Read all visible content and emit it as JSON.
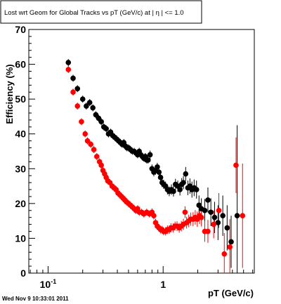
{
  "chart_data": {
    "type": "scatter",
    "title": "Lost wrt Geom for Global Tracks vs pT (GeV/c) at |  η | <= 1.0",
    "xlabel": "pT (GeV/c)",
    "ylabel": "Efficiency (%)",
    "x_scale": "log",
    "xlim": [
      0.068,
      6.2
    ],
    "ylim": [
      0,
      70
    ],
    "x_major_ticks": [
      {
        "value": 0.1,
        "base": "10",
        "exp": "-1"
      },
      {
        "value": 1,
        "label": "1"
      }
    ],
    "y_ticks": [
      0,
      10,
      20,
      30,
      40,
      50,
      60,
      70
    ],
    "footer": "Wed Nov  9 10:33:01 2011",
    "series": [
      {
        "color": "#000000",
        "points": [
          [
            0.15,
            60.5
          ],
          [
            0.165,
            56
          ],
          [
            0.18,
            53
          ],
          [
            0.2,
            50
          ],
          [
            0.215,
            48
          ],
          [
            0.23,
            49
          ],
          [
            0.245,
            47.5
          ],
          [
            0.26,
            45.5
          ],
          [
            0.275,
            44.5
          ],
          [
            0.29,
            43.5
          ],
          [
            0.305,
            42
          ],
          [
            0.32,
            41.5
          ],
          [
            0.335,
            40
          ],
          [
            0.35,
            40.5
          ],
          [
            0.365,
            39.5
          ],
          [
            0.38,
            39
          ],
          [
            0.395,
            38.5
          ],
          [
            0.41,
            38
          ],
          [
            0.425,
            37.5
          ],
          [
            0.44,
            37
          ],
          [
            0.455,
            37.5
          ],
          [
            0.47,
            36.5
          ],
          [
            0.485,
            36
          ],
          [
            0.5,
            36
          ],
          [
            0.52,
            35.5
          ],
          [
            0.54,
            35
          ],
          [
            0.56,
            35
          ],
          [
            0.58,
            34.5
          ],
          [
            0.6,
            34
          ],
          [
            0.62,
            35
          ],
          [
            0.64,
            34
          ],
          [
            0.66,
            33.5
          ],
          [
            0.68,
            33
          ],
          [
            0.7,
            33.5
          ],
          [
            0.72,
            32.5
          ],
          [
            0.74,
            32.5
          ],
          [
            0.77,
            34
          ],
          [
            0.8,
            30
          ],
          [
            0.83,
            29
          ],
          [
            0.86,
            29.5
          ],
          [
            0.89,
            30.5
          ],
          [
            0.92,
            29
          ],
          [
            0.95,
            27.5
          ],
          [
            0.98,
            26
          ],
          [
            1.01,
            25.5
          ],
          [
            1.05,
            25
          ],
          [
            1.09,
            24
          ],
          [
            1.13,
            23.5
          ],
          [
            1.18,
            24
          ],
          [
            1.23,
            23.5
          ],
          [
            1.28,
            25.5
          ],
          [
            1.34,
            25
          ],
          [
            1.4,
            24
          ],
          [
            1.45,
            25.5
          ],
          [
            1.5,
            26
          ],
          [
            1.57,
            28.5
          ],
          [
            1.64,
            24.5
          ],
          [
            1.71,
            25
          ],
          [
            1.78,
            24
          ],
          [
            1.86,
            24.5
          ],
          [
            1.95,
            24
          ],
          [
            2.05,
            19.5
          ],
          [
            2.15,
            18.5
          ],
          [
            2.3,
            18
          ],
          [
            2.45,
            21
          ],
          [
            2.6,
            17.5
          ],
          [
            2.8,
            16
          ],
          [
            3.0,
            14.5
          ],
          [
            3.3,
            16.5
          ],
          [
            3.6,
            13
          ],
          [
            3.9,
            9
          ],
          [
            4.4,
            16.5
          ]
        ],
        "errors": [
          [
            0.15,
            1
          ],
          [
            0.165,
            1
          ],
          [
            0.18,
            1
          ],
          [
            0.2,
            1
          ],
          [
            0.215,
            1
          ],
          [
            0.23,
            1
          ],
          [
            0.245,
            1
          ],
          [
            0.26,
            1
          ],
          [
            0.275,
            1
          ],
          [
            0.29,
            1
          ],
          [
            0.305,
            1
          ],
          [
            0.32,
            1
          ],
          [
            0.335,
            1
          ],
          [
            0.35,
            1
          ],
          [
            0.365,
            1
          ],
          [
            0.38,
            1
          ],
          [
            0.395,
            1
          ],
          [
            0.41,
            1
          ],
          [
            0.425,
            1
          ],
          [
            0.44,
            1
          ],
          [
            0.455,
            1
          ],
          [
            0.47,
            1
          ],
          [
            0.485,
            1
          ],
          [
            0.5,
            1
          ],
          [
            0.52,
            1
          ],
          [
            0.54,
            1
          ],
          [
            0.56,
            1
          ],
          [
            0.58,
            1
          ],
          [
            0.6,
            1
          ],
          [
            0.62,
            1
          ],
          [
            0.64,
            1
          ],
          [
            0.66,
            1
          ],
          [
            0.68,
            1
          ],
          [
            0.7,
            1
          ],
          [
            0.72,
            1
          ],
          [
            0.74,
            1
          ],
          [
            0.77,
            1.2
          ],
          [
            0.8,
            1.2
          ],
          [
            0.83,
            1.2
          ],
          [
            0.86,
            1.2
          ],
          [
            0.89,
            1.2
          ],
          [
            0.92,
            1.2
          ],
          [
            0.95,
            1.2
          ],
          [
            0.98,
            1.3
          ],
          [
            1.01,
            1.3
          ],
          [
            1.05,
            1.3
          ],
          [
            1.09,
            1.4
          ],
          [
            1.13,
            1.4
          ],
          [
            1.18,
            1.5
          ],
          [
            1.23,
            1.5
          ],
          [
            1.28,
            1.6
          ],
          [
            1.34,
            1.6
          ],
          [
            1.4,
            1.7
          ],
          [
            1.45,
            1.8
          ],
          [
            1.5,
            1.9
          ],
          [
            1.57,
            2
          ],
          [
            1.64,
            2.1
          ],
          [
            1.71,
            2.2
          ],
          [
            1.78,
            2.3
          ],
          [
            1.86,
            2.4
          ],
          [
            1.95,
            2.6
          ],
          [
            2.05,
            2.8
          ],
          [
            2.15,
            3
          ],
          [
            2.3,
            3.3
          ],
          [
            2.45,
            3.6
          ],
          [
            2.6,
            4
          ],
          [
            2.8,
            4.5
          ],
          [
            3.0,
            5
          ],
          [
            3.3,
            5.8
          ],
          [
            3.6,
            6.5
          ],
          [
            3.9,
            7.5
          ],
          [
            4.4,
            26
          ]
        ]
      },
      {
        "color": "#ff0000",
        "points": [
          [
            0.15,
            58.5
          ],
          [
            0.165,
            52
          ],
          [
            0.18,
            48
          ],
          [
            0.195,
            43.5
          ],
          [
            0.21,
            40
          ],
          [
            0.22,
            38
          ],
          [
            0.235,
            37
          ],
          [
            0.25,
            35.5
          ],
          [
            0.265,
            33.5
          ],
          [
            0.28,
            32
          ],
          [
            0.29,
            31
          ],
          [
            0.3,
            29.5
          ],
          [
            0.31,
            28.5
          ],
          [
            0.32,
            27.5
          ],
          [
            0.33,
            26.5
          ],
          [
            0.345,
            26
          ],
          [
            0.36,
            25
          ],
          [
            0.375,
            24.5
          ],
          [
            0.39,
            24
          ],
          [
            0.405,
            23
          ],
          [
            0.42,
            22.5
          ],
          [
            0.435,
            22
          ],
          [
            0.45,
            21.5
          ],
          [
            0.465,
            21
          ],
          [
            0.48,
            20.5
          ],
          [
            0.5,
            20
          ],
          [
            0.52,
            19.5
          ],
          [
            0.54,
            19
          ],
          [
            0.56,
            18.5
          ],
          [
            0.58,
            18
          ],
          [
            0.6,
            18.5
          ],
          [
            0.62,
            17.5
          ],
          [
            0.65,
            17.5
          ],
          [
            0.68,
            17
          ],
          [
            0.72,
            17.5
          ],
          [
            0.76,
            17
          ],
          [
            0.8,
            17.5
          ],
          [
            0.83,
            16.5
          ],
          [
            0.86,
            14.5
          ],
          [
            0.89,
            13.5
          ],
          [
            0.92,
            13
          ],
          [
            0.95,
            12.5
          ],
          [
            0.98,
            12.5
          ],
          [
            1.01,
            12
          ],
          [
            1.05,
            12
          ],
          [
            1.09,
            12.5
          ],
          [
            1.13,
            12.5
          ],
          [
            1.17,
            13
          ],
          [
            1.22,
            13
          ],
          [
            1.27,
            13.5
          ],
          [
            1.32,
            13.5
          ],
          [
            1.38,
            13
          ],
          [
            1.44,
            13.5
          ],
          [
            1.5,
            14
          ],
          [
            1.55,
            17.5
          ],
          [
            1.6,
            14.5
          ],
          [
            1.67,
            15
          ],
          [
            1.74,
            15.5
          ],
          [
            1.82,
            15.5
          ],
          [
            1.9,
            16
          ],
          [
            1.98,
            15.5
          ],
          [
            2.07,
            16.5
          ],
          [
            2.15,
            16
          ],
          [
            2.3,
            12
          ],
          [
            2.45,
            12
          ],
          [
            2.75,
            14
          ],
          [
            3.05,
            18
          ],
          [
            3.4,
            5.5
          ],
          [
            3.8,
            7.5
          ],
          [
            4.3,
            31
          ],
          [
            4.9,
            16.5
          ]
        ],
        "errors": [
          [
            0.15,
            1
          ],
          [
            0.165,
            1
          ],
          [
            0.18,
            1
          ],
          [
            0.195,
            1
          ],
          [
            0.21,
            1
          ],
          [
            0.22,
            1
          ],
          [
            0.235,
            1
          ],
          [
            0.25,
            1
          ],
          [
            0.265,
            1
          ],
          [
            0.28,
            1
          ],
          [
            0.29,
            1
          ],
          [
            0.3,
            1
          ],
          [
            0.31,
            1
          ],
          [
            0.32,
            1
          ],
          [
            0.33,
            1
          ],
          [
            0.345,
            1
          ],
          [
            0.36,
            1
          ],
          [
            0.375,
            1
          ],
          [
            0.39,
            1
          ],
          [
            0.405,
            1
          ],
          [
            0.42,
            1
          ],
          [
            0.435,
            1
          ],
          [
            0.45,
            1
          ],
          [
            0.465,
            1
          ],
          [
            0.48,
            1
          ],
          [
            0.5,
            1
          ],
          [
            0.52,
            1
          ],
          [
            0.54,
            1
          ],
          [
            0.56,
            1
          ],
          [
            0.58,
            1
          ],
          [
            0.6,
            1
          ],
          [
            0.62,
            1
          ],
          [
            0.65,
            1
          ],
          [
            0.68,
            1
          ],
          [
            0.72,
            1
          ],
          [
            0.76,
            1
          ],
          [
            0.8,
            1.1
          ],
          [
            0.83,
            1.1
          ],
          [
            0.86,
            1.1
          ],
          [
            0.89,
            1.1
          ],
          [
            0.92,
            1.1
          ],
          [
            0.95,
            1.1
          ],
          [
            0.98,
            1.1
          ],
          [
            1.01,
            1.1
          ],
          [
            1.05,
            1.2
          ],
          [
            1.09,
            1.2
          ],
          [
            1.13,
            1.2
          ],
          [
            1.17,
            1.3
          ],
          [
            1.22,
            1.3
          ],
          [
            1.27,
            1.3
          ],
          [
            1.32,
            1.4
          ],
          [
            1.38,
            1.4
          ],
          [
            1.44,
            1.5
          ],
          [
            1.5,
            1.6
          ],
          [
            1.55,
            1.7
          ],
          [
            1.6,
            1.7
          ],
          [
            1.67,
            1.8
          ],
          [
            1.74,
            1.9
          ],
          [
            1.82,
            2
          ],
          [
            1.9,
            2.1
          ],
          [
            1.98,
            2.2
          ],
          [
            2.07,
            2.4
          ],
          [
            2.15,
            2.6
          ],
          [
            2.3,
            3
          ],
          [
            2.45,
            3.3
          ],
          [
            2.75,
            4
          ],
          [
            3.05,
            5
          ],
          [
            3.4,
            6
          ],
          [
            3.8,
            8
          ],
          [
            4.3,
            8
          ],
          [
            4.9,
            15
          ]
        ]
      }
    ]
  }
}
